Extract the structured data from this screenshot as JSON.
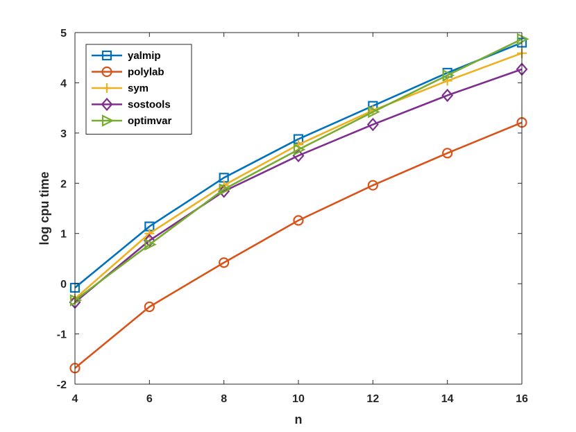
{
  "chart_data": {
    "type": "line",
    "xlabel": "n",
    "ylabel": "log cpu time",
    "x": [
      4,
      6,
      8,
      10,
      12,
      14,
      16
    ],
    "xlim": [
      4,
      16
    ],
    "ylim": [
      -2,
      5
    ],
    "xticks": [
      "4",
      "6",
      "8",
      "10",
      "12",
      "14",
      "16"
    ],
    "yticks": [
      "-2",
      "-1",
      "0",
      "1",
      "2",
      "3",
      "4",
      "5"
    ],
    "grid": false,
    "legend_position": "top-left",
    "series": [
      {
        "name": "yalmip",
        "color": "#0072BD",
        "marker": "square",
        "values": [
          -0.08,
          1.14,
          2.11,
          2.88,
          3.54,
          4.2,
          4.8
        ]
      },
      {
        "name": "polylab",
        "color": "#D95319",
        "marker": "circle",
        "values": [
          -1.68,
          -0.46,
          0.42,
          1.26,
          1.96,
          2.6,
          3.21
        ]
      },
      {
        "name": "sym",
        "color": "#EDB120",
        "marker": "plus",
        "values": [
          -0.3,
          1.0,
          1.96,
          2.77,
          3.45,
          4.04,
          4.59
        ]
      },
      {
        "name": "sostools",
        "color": "#7E2F8E",
        "marker": "diamond",
        "values": [
          -0.37,
          0.86,
          1.84,
          2.55,
          3.17,
          3.75,
          4.27
        ]
      },
      {
        "name": "optimvar",
        "color": "#77AC30",
        "marker": "triangle-right",
        "values": [
          -0.33,
          0.78,
          1.88,
          2.67,
          3.42,
          4.15,
          4.87
        ]
      }
    ]
  }
}
